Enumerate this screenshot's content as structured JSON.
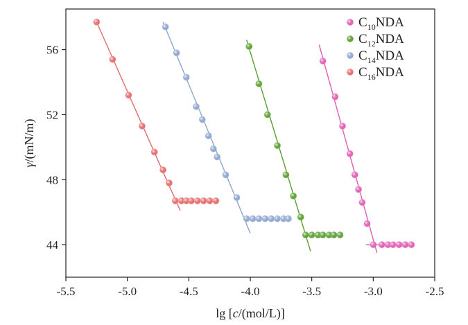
{
  "chart_data": {
    "type": "scatter",
    "xlabel": {
      "prefix": "lg [",
      "italic": "c",
      "suffix": "/(mol/L)]"
    },
    "ylabel": {
      "italic": "γ",
      "suffix": "/(mN/m)"
    },
    "xlim": [
      -5.5,
      -2.5
    ],
    "ylim": [
      42,
      58.5
    ],
    "xticks": [
      -5.5,
      -5.0,
      -4.5,
      -4.0,
      -3.5,
      -3.0,
      -2.5
    ],
    "xtick_labels": [
      "-5.5",
      "-5.0",
      "-4.5",
      "-4.0",
      "-3.5",
      "-3.0",
      "-2.5"
    ],
    "yticks": [
      44,
      48,
      52,
      56
    ],
    "ytick_labels": [
      "44",
      "48",
      "52",
      "56"
    ],
    "legend_position": "top-right",
    "series": [
      {
        "name": "C10NDA",
        "name_parts": [
          "C",
          "10",
          "NDA"
        ],
        "color": "#e05bb3",
        "points": [
          [
            -3.41,
            55.3
          ],
          [
            -3.31,
            53.1
          ],
          [
            -3.25,
            51.3
          ],
          [
            -3.19,
            49.6
          ],
          [
            -3.15,
            48.3
          ],
          [
            -3.12,
            47.4
          ],
          [
            -3.09,
            46.6
          ],
          [
            -3.05,
            45.3
          ],
          [
            -3.0,
            44.0
          ],
          [
            -2.93,
            44.0
          ],
          [
            -2.88,
            44.0
          ],
          [
            -2.84,
            44.0
          ],
          [
            -2.79,
            44.0
          ],
          [
            -2.74,
            44.0
          ],
          [
            -2.69,
            44.0
          ]
        ],
        "lines": [
          [
            [
              -3.44,
              56.3
            ],
            [
              -2.97,
              43.5
            ]
          ],
          [
            [
              -3.06,
              44.0
            ],
            [
              -2.72,
              44.0
            ]
          ]
        ]
      },
      {
        "name": "C12NDA",
        "name_parts": [
          "C",
          "12",
          "NDA"
        ],
        "color": "#5a9e2f",
        "points": [
          [
            -4.01,
            56.2
          ],
          [
            -3.93,
            53.9
          ],
          [
            -3.86,
            52.0
          ],
          [
            -3.78,
            50.1
          ],
          [
            -3.71,
            48.3
          ],
          [
            -3.65,
            47.0
          ],
          [
            -3.59,
            45.7
          ],
          [
            -3.55,
            44.6
          ],
          [
            -3.5,
            44.6
          ],
          [
            -3.45,
            44.6
          ],
          [
            -3.41,
            44.6
          ],
          [
            -3.36,
            44.6
          ],
          [
            -3.32,
            44.6
          ],
          [
            -3.27,
            44.6
          ]
        ],
        "lines": [
          [
            [
              -4.03,
              56.6
            ],
            [
              -3.51,
              43.6
            ]
          ],
          [
            [
              -3.57,
              44.6
            ],
            [
              -3.27,
              44.6
            ]
          ]
        ]
      },
      {
        "name": "C14NDA",
        "name_parts": [
          "C",
          "14",
          "NDA"
        ],
        "color": "#8ca5cf",
        "points": [
          [
            -4.69,
            57.4
          ],
          [
            -4.6,
            55.8
          ],
          [
            -4.52,
            54.3
          ],
          [
            -4.44,
            52.5
          ],
          [
            -4.39,
            51.7
          ],
          [
            -4.34,
            50.7
          ],
          [
            -4.3,
            49.9
          ],
          [
            -4.27,
            49.4
          ],
          [
            -4.2,
            48.3
          ],
          [
            -4.11,
            46.9
          ],
          [
            -4.03,
            45.6
          ],
          [
            -3.98,
            45.6
          ],
          [
            -3.93,
            45.6
          ],
          [
            -3.88,
            45.6
          ],
          [
            -3.83,
            45.6
          ],
          [
            -3.78,
            45.6
          ],
          [
            -3.73,
            45.6
          ],
          [
            -3.69,
            45.6
          ]
        ],
        "lines": [
          [
            [
              -4.71,
              57.7
            ],
            [
              -4.0,
              44.7
            ]
          ],
          [
            [
              -4.05,
              45.6
            ],
            [
              -3.7,
              45.6
            ]
          ]
        ]
      },
      {
        "name": "C16NDA",
        "name_parts": [
          "C",
          "16",
          "NDA"
        ],
        "color": "#e56a6a",
        "points": [
          [
            -5.25,
            57.7
          ],
          [
            -5.12,
            55.4
          ],
          [
            -4.99,
            53.2
          ],
          [
            -4.88,
            51.3
          ],
          [
            -4.78,
            49.7
          ],
          [
            -4.71,
            48.6
          ],
          [
            -4.66,
            47.8
          ],
          [
            -4.61,
            46.7
          ],
          [
            -4.56,
            46.7
          ],
          [
            -4.52,
            46.7
          ],
          [
            -4.48,
            46.7
          ],
          [
            -4.43,
            46.7
          ],
          [
            -4.38,
            46.7
          ],
          [
            -4.33,
            46.7
          ],
          [
            -4.28,
            46.7
          ]
        ],
        "lines": [
          [
            [
              -5.25,
              57.7
            ],
            [
              -4.57,
              46.1
            ]
          ],
          [
            [
              -4.62,
              46.7
            ],
            [
              -4.27,
              46.7
            ]
          ]
        ]
      }
    ]
  }
}
